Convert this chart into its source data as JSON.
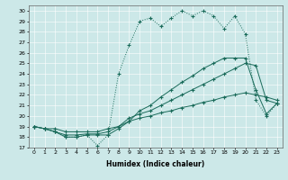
{
  "xlabel": "Humidex (Indice chaleur)",
  "bg_color": "#cce8e8",
  "line_color": "#1a6b5a",
  "xlim": [
    -0.5,
    23.5
  ],
  "ylim": [
    17,
    30.5
  ],
  "xticks": [
    0,
    1,
    2,
    3,
    4,
    5,
    6,
    7,
    8,
    9,
    10,
    11,
    12,
    13,
    14,
    15,
    16,
    17,
    18,
    19,
    20,
    21,
    22,
    23
  ],
  "yticks": [
    17,
    18,
    19,
    20,
    21,
    22,
    23,
    24,
    25,
    26,
    27,
    28,
    29,
    30
  ],
  "line1_dotted": [
    [
      0,
      19.0
    ],
    [
      1,
      18.8
    ],
    [
      2,
      18.5
    ],
    [
      3,
      18.0
    ],
    [
      4,
      18.0
    ],
    [
      5,
      18.2
    ],
    [
      6,
      17.2
    ],
    [
      7,
      18.2
    ],
    [
      8,
      24.0
    ],
    [
      9,
      26.7
    ],
    [
      10,
      29.0
    ],
    [
      11,
      29.3
    ],
    [
      12,
      28.5
    ],
    [
      13,
      29.3
    ],
    [
      14,
      30.0
    ],
    [
      15,
      29.5
    ],
    [
      16,
      30.0
    ],
    [
      17,
      29.5
    ],
    [
      18,
      28.3
    ],
    [
      19,
      29.5
    ],
    [
      20,
      27.8
    ],
    [
      21,
      21.5
    ],
    [
      22,
      20.0
    ],
    [
      23,
      21.2
    ]
  ],
  "line2_solid": [
    [
      0,
      19.0
    ],
    [
      1,
      18.8
    ],
    [
      2,
      18.5
    ],
    [
      3,
      18.0
    ],
    [
      4,
      18.0
    ],
    [
      5,
      18.2
    ],
    [
      6,
      18.2
    ],
    [
      7,
      18.2
    ],
    [
      8,
      18.8
    ],
    [
      9,
      19.5
    ],
    [
      10,
      20.5
    ],
    [
      11,
      21.0
    ],
    [
      12,
      21.8
    ],
    [
      13,
      22.5
    ],
    [
      14,
      23.2
    ],
    [
      15,
      23.8
    ],
    [
      16,
      24.5
    ],
    [
      17,
      25.0
    ],
    [
      18,
      25.5
    ],
    [
      19,
      25.5
    ],
    [
      20,
      25.5
    ],
    [
      21,
      22.5
    ],
    [
      22,
      20.2
    ],
    [
      23,
      21.2
    ]
  ],
  "line3_solid": [
    [
      0,
      19.0
    ],
    [
      1,
      18.8
    ],
    [
      2,
      18.5
    ],
    [
      3,
      18.2
    ],
    [
      4,
      18.2
    ],
    [
      5,
      18.3
    ],
    [
      6,
      18.3
    ],
    [
      7,
      18.5
    ],
    [
      8,
      19.0
    ],
    [
      9,
      19.8
    ],
    [
      10,
      20.2
    ],
    [
      11,
      20.5
    ],
    [
      12,
      21.0
    ],
    [
      13,
      21.5
    ],
    [
      14,
      22.0
    ],
    [
      15,
      22.5
    ],
    [
      16,
      23.0
    ],
    [
      17,
      23.5
    ],
    [
      18,
      24.0
    ],
    [
      19,
      24.5
    ],
    [
      20,
      25.0
    ],
    [
      21,
      24.8
    ],
    [
      22,
      21.5
    ],
    [
      23,
      21.2
    ]
  ],
  "line4_solid": [
    [
      0,
      19.0
    ],
    [
      1,
      18.8
    ],
    [
      2,
      18.8
    ],
    [
      3,
      18.5
    ],
    [
      4,
      18.5
    ],
    [
      5,
      18.5
    ],
    [
      6,
      18.5
    ],
    [
      7,
      18.8
    ],
    [
      8,
      19.0
    ],
    [
      9,
      19.5
    ],
    [
      10,
      19.8
    ],
    [
      11,
      20.0
    ],
    [
      12,
      20.3
    ],
    [
      13,
      20.5
    ],
    [
      14,
      20.8
    ],
    [
      15,
      21.0
    ],
    [
      16,
      21.3
    ],
    [
      17,
      21.5
    ],
    [
      18,
      21.8
    ],
    [
      19,
      22.0
    ],
    [
      20,
      22.2
    ],
    [
      21,
      22.0
    ],
    [
      22,
      21.8
    ],
    [
      23,
      21.5
    ]
  ]
}
